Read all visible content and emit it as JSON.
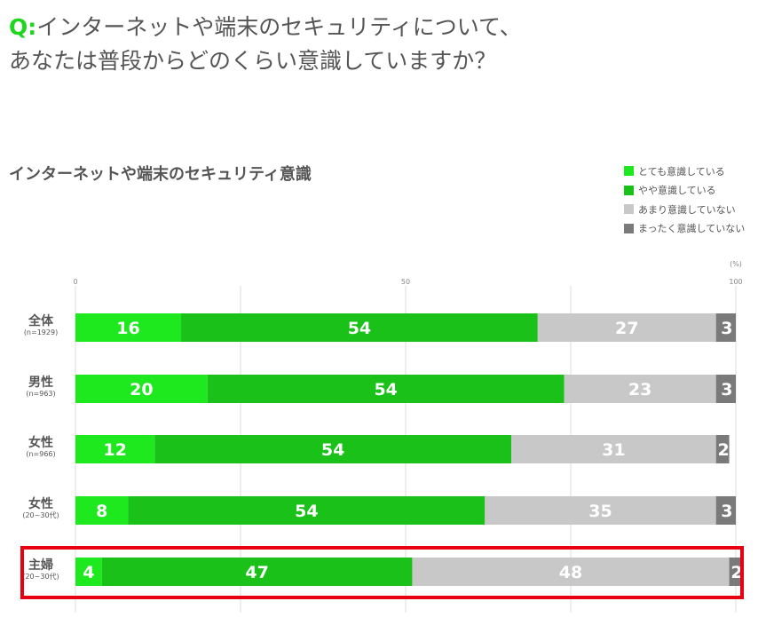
{
  "question": {
    "prefix": "Q:",
    "line1": "インターネットや端末のセキュリティについて、",
    "line2": "あなたは普段からどのくらい意識していますか？"
  },
  "chart_data": {
    "type": "bar",
    "orientation": "horizontal",
    "stacked": true,
    "title": "インターネットや端末のセキュリティ意識",
    "unit": "(%)",
    "xlim": [
      0,
      100
    ],
    "xticks": [
      "0",
      "50",
      "100"
    ],
    "grid": true,
    "legend_position": "top-right",
    "categories": [
      {
        "name": "全体",
        "n": "(n=1929)"
      },
      {
        "name": "男性",
        "n": "(n=963)"
      },
      {
        "name": "女性",
        "n": "(n=966)"
      },
      {
        "name": "女性",
        "n": "(20~30代)"
      },
      {
        "name": "主婦",
        "n": "(20~30代)"
      }
    ],
    "series": [
      {
        "name": "とても意識している",
        "color": "#1ee81e",
        "values": [
          16,
          20,
          12,
          8,
          4
        ]
      },
      {
        "name": "やや意識している",
        "color": "#19c119",
        "values": [
          54,
          54,
          54,
          54,
          47
        ]
      },
      {
        "name": "あまり意識していない",
        "color": "#c8c8c8",
        "values": [
          27,
          23,
          31,
          35,
          48
        ]
      },
      {
        "name": "まったく意識していない",
        "color": "#7a7a7a",
        "values": [
          3,
          3,
          2,
          3,
          2
        ]
      }
    ],
    "highlighted_category_index": 4,
    "highlight_color": "#e60012"
  }
}
